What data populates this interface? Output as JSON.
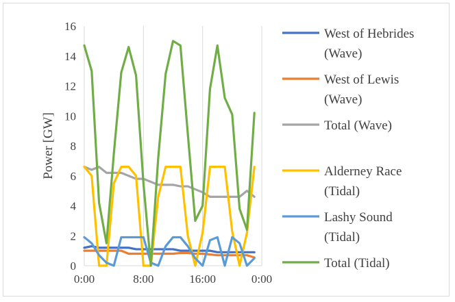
{
  "chart_data": {
    "type": "line",
    "title": "",
    "xlabel": "",
    "ylabel": "Power [GW]",
    "ylim": [
      0,
      16
    ],
    "y_ticks": [
      "0",
      "2",
      "4",
      "6",
      "8",
      "10",
      "12",
      "14",
      "16"
    ],
    "x_ticks": [
      "0:00",
      "8:00",
      "16:00",
      "0:00"
    ],
    "x_range_hours": [
      0,
      24
    ],
    "grid": "vertical-only",
    "legend_position": "right",
    "x_hours": [
      0,
      1,
      2,
      3,
      4,
      5,
      6,
      7,
      8,
      9,
      10,
      11,
      12,
      13,
      14,
      15,
      16,
      17,
      18,
      19,
      20,
      21,
      22,
      23
    ],
    "series": [
      {
        "name_lines": [
          "West of Hebrides",
          "(Wave)"
        ],
        "color": "#4472c4",
        "values": [
          1.2,
          1.3,
          1.2,
          1.2,
          1.2,
          1.2,
          1.2,
          1.1,
          1.1,
          1.1,
          1.1,
          1.1,
          1.1,
          1.0,
          1.0,
          1.0,
          1.0,
          1.0,
          0.9,
          0.9,
          0.9,
          0.9,
          0.9,
          0.9
        ]
      },
      {
        "name_lines": [
          "West of Lewis",
          "(Wave)"
        ],
        "color": "#ed7d31",
        "values": [
          1.0,
          1.0,
          1.0,
          1.0,
          1.0,
          1.0,
          0.8,
          0.8,
          0.8,
          0.8,
          0.8,
          0.8,
          0.8,
          0.85,
          0.85,
          0.8,
          0.8,
          0.75,
          0.7,
          0.7,
          0.7,
          0.7,
          0.7,
          0.55
        ]
      },
      {
        "name_lines": [
          "Total (Wave)"
        ],
        "color": "#a5a5a5",
        "values": [
          6.6,
          6.4,
          6.6,
          6.2,
          6.2,
          6.2,
          6.0,
          5.8,
          5.8,
          5.6,
          5.4,
          5.4,
          5.4,
          5.3,
          5.3,
          5.1,
          4.9,
          4.6,
          4.6,
          4.6,
          4.6,
          4.6,
          5.0,
          4.6
        ]
      },
      {
        "name_lines": [
          "Alderney Race",
          "(Tidal)"
        ],
        "color": "#ffc000",
        "values": [
          6.6,
          6.0,
          0,
          0,
          5.5,
          6.6,
          6.6,
          6.0,
          0,
          0,
          4.6,
          6.6,
          6.6,
          6.6,
          2.0,
          0,
          2.2,
          6.6,
          6.6,
          6.6,
          2.3,
          0,
          2.2,
          6.6
        ]
      },
      {
        "name_lines": [
          "Lashy Sound",
          "(Tidal)"
        ],
        "color": "#5b9bd5",
        "values": [
          1.9,
          1.5,
          0.7,
          0.2,
          0,
          1.9,
          1.9,
          1.9,
          1.9,
          0.2,
          0,
          1.3,
          1.9,
          1.9,
          1.3,
          0.5,
          0,
          1.7,
          1.9,
          0,
          1.9,
          1.5,
          0,
          0.5
        ]
      },
      {
        "name_lines": [
          "Total (Tidal)"
        ],
        "color": "#70ad47",
        "values": [
          14.7,
          13.0,
          4.2,
          1.5,
          7.5,
          12.9,
          14.6,
          12.7,
          5.5,
          0,
          7.2,
          12.8,
          15.0,
          14.7,
          8.8,
          3.0,
          4.0,
          11.8,
          14.7,
          11.2,
          10.1,
          3.8,
          2.4,
          10.2
        ]
      }
    ]
  }
}
